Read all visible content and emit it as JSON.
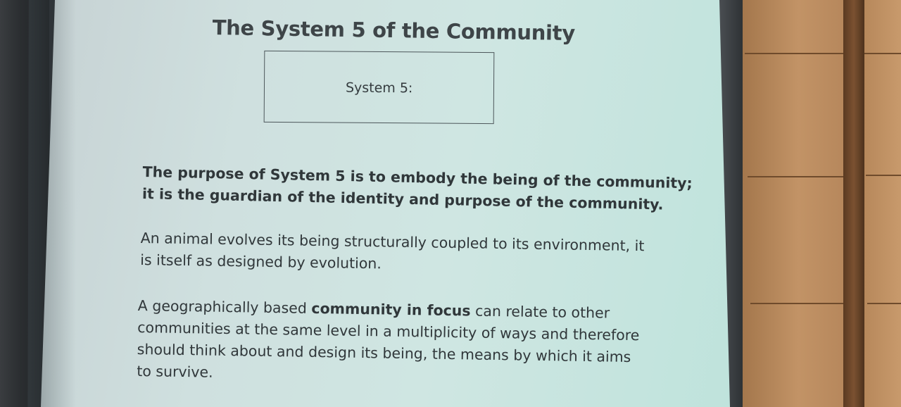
{
  "slide": {
    "title": "The System 5 of the Community",
    "box_label": "System 5:",
    "paragraph1": {
      "line1": "The purpose of System 5 is to embody the being of the community;",
      "line2": "it is the guardian of the identity and purpose of the community."
    },
    "paragraph2": {
      "line1": "An animal evolves its being structurally coupled to its environment, it",
      "line2": "is itself as designed by evolution."
    },
    "paragraph3": {
      "line1_pre": "A geographically based ",
      "line1_bold": "community in focus",
      "line1_post": " can relate to other",
      "line2": "communities at the same level in a multiplicity of ways and therefore",
      "line3": "should think about and design its being, the means by which it aims",
      "line4": "to survive."
    }
  },
  "colors": {
    "screen": "#cfe6e2",
    "text": "#30373a",
    "wall": "#c29366"
  }
}
